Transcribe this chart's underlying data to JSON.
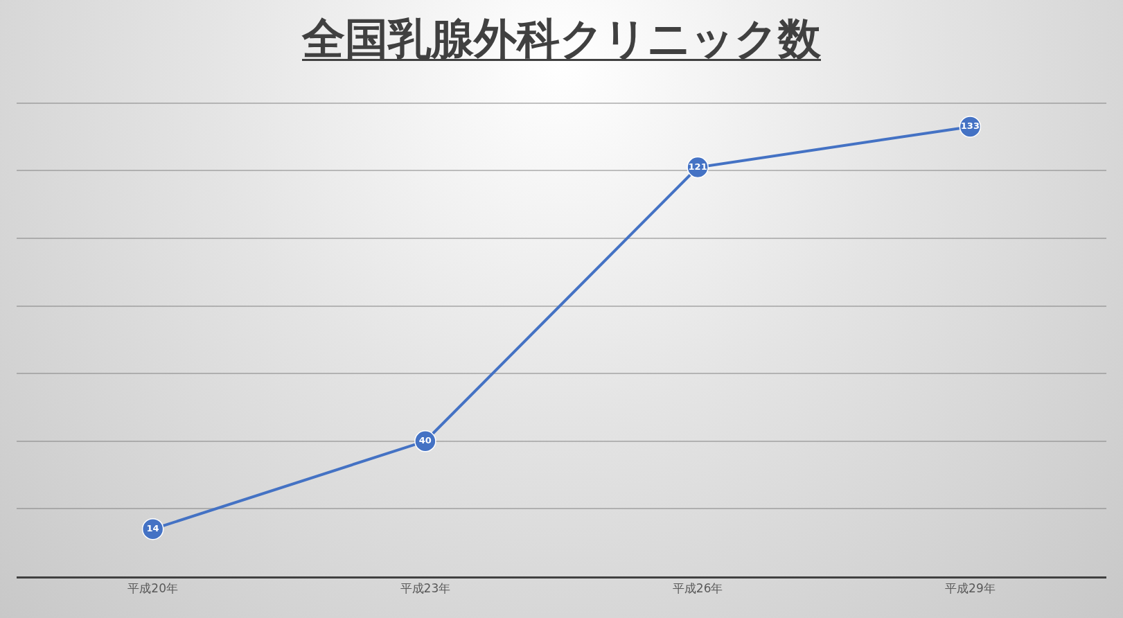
{
  "chart_data": {
    "type": "line",
    "title": "全国乳腺外科クリニック数",
    "categories": [
      "平成20年",
      "平成23年",
      "平成26年",
      "平成29年"
    ],
    "series": [
      {
        "color": "#4472c4",
        "values": [
          14,
          40,
          121,
          133
        ]
      }
    ],
    "tick_labels": "x",
    "grid": "y",
    "marker": "circle",
    "line_style": "solid",
    "data_labels": true
  }
}
